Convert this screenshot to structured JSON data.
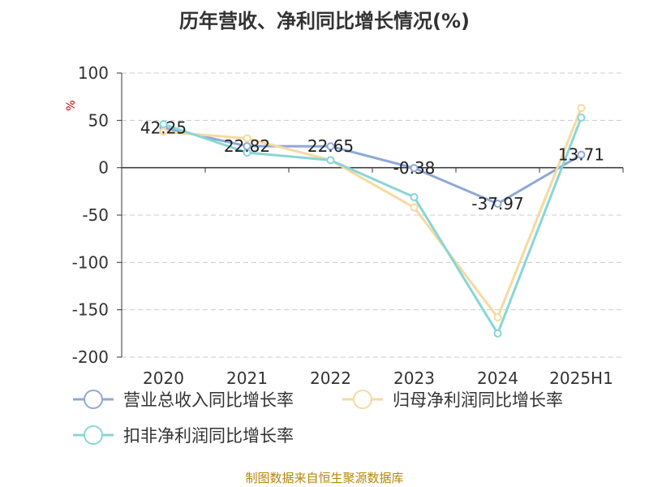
{
  "chart_data": {
    "type": "line",
    "title": "历年营收、净利同比增长情况(%)",
    "ylabel": "%",
    "categories": [
      "2020",
      "2021",
      "2022",
      "2023",
      "2024",
      "2025H1"
    ],
    "ylim": [
      -200,
      100
    ],
    "yticks": [
      100,
      50,
      0,
      -50,
      -100,
      -150,
      -200
    ],
    "grid": true,
    "legend_position": "bottom",
    "series": [
      {
        "name": "营业总收入同比增长率",
        "color": "#8fa9d6",
        "values": [
          42.25,
          22.82,
          22.65,
          -0.38,
          -37.97,
          13.71
        ],
        "labels": [
          "42.25",
          "22.82",
          "22.65",
          "-0.38",
          "-37.97",
          "13.71"
        ]
      },
      {
        "name": "归母净利润同比增长率",
        "color": "#f7d9a0",
        "values": [
          38,
          31,
          8,
          -42,
          -158,
          63
        ]
      },
      {
        "name": "扣非净利润同比增长率",
        "color": "#88d6d6",
        "values": [
          46,
          16,
          8,
          -31,
          -175,
          53
        ]
      }
    ]
  },
  "footer": "制图数据来自恒生聚源数据库"
}
